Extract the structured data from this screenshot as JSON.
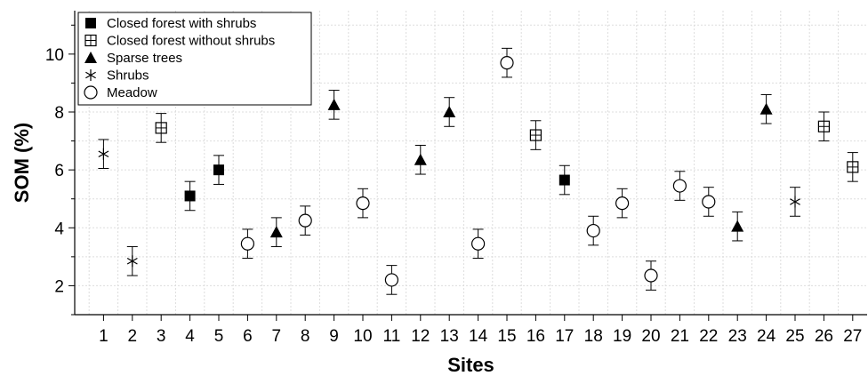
{
  "chart_data": {
    "type": "scatter",
    "title": "",
    "xlabel": "Sites",
    "ylabel": "SOM (%)",
    "xlim": [
      0,
      27.5
    ],
    "ylim": [
      1,
      11.5
    ],
    "x_ticks": [
      "1",
      "2",
      "3",
      "4",
      "5",
      "6",
      "7",
      "8",
      "9",
      "10",
      "11",
      "12",
      "13",
      "14",
      "15",
      "16",
      "17",
      "18",
      "19",
      "20",
      "21",
      "22",
      "23",
      "24",
      "25",
      "26",
      "27"
    ],
    "y_ticks": [
      "2",
      "4",
      "6",
      "8",
      "10"
    ],
    "grid": true,
    "legend_position": "top-left",
    "legend": [
      {
        "label": "Closed forest with shrubs",
        "marker": "filled-square"
      },
      {
        "label": "Closed forest without shrubs",
        "marker": "crossed-square"
      },
      {
        "label": "Sparse trees",
        "marker": "filled-triangle"
      },
      {
        "label": "Shrubs",
        "marker": "asterisk"
      },
      {
        "label": "Meadow",
        "marker": "open-circle"
      }
    ],
    "points": [
      {
        "x": 1,
        "y": 6.55,
        "err": 0.5,
        "marker": "asterisk"
      },
      {
        "x": 2,
        "y": 2.85,
        "err": 0.5,
        "marker": "asterisk"
      },
      {
        "x": 3,
        "y": 7.45,
        "err": 0.5,
        "marker": "crossed-square"
      },
      {
        "x": 4,
        "y": 5.1,
        "err": 0.5,
        "marker": "filled-square"
      },
      {
        "x": 5,
        "y": 6.0,
        "err": 0.5,
        "marker": "filled-square"
      },
      {
        "x": 6,
        "y": 3.45,
        "err": 0.5,
        "marker": "open-circle"
      },
      {
        "x": 7,
        "y": 3.85,
        "err": 0.5,
        "marker": "filled-triangle"
      },
      {
        "x": 8,
        "y": 4.25,
        "err": 0.5,
        "marker": "open-circle"
      },
      {
        "x": 9,
        "y": 8.25,
        "err": 0.5,
        "marker": "filled-triangle"
      },
      {
        "x": 10,
        "y": 4.85,
        "err": 0.5,
        "marker": "open-circle"
      },
      {
        "x": 11,
        "y": 2.2,
        "err": 0.5,
        "marker": "open-circle"
      },
      {
        "x": 12,
        "y": 6.35,
        "err": 0.5,
        "marker": "filled-triangle"
      },
      {
        "x": 13,
        "y": 8.0,
        "err": 0.5,
        "marker": "filled-triangle"
      },
      {
        "x": 14,
        "y": 3.45,
        "err": 0.5,
        "marker": "open-circle"
      },
      {
        "x": 15,
        "y": 9.7,
        "err": 0.5,
        "marker": "open-circle"
      },
      {
        "x": 16,
        "y": 7.2,
        "err": 0.5,
        "marker": "crossed-square"
      },
      {
        "x": 17,
        "y": 5.65,
        "err": 0.5,
        "marker": "filled-square"
      },
      {
        "x": 18,
        "y": 3.9,
        "err": 0.5,
        "marker": "open-circle"
      },
      {
        "x": 19,
        "y": 4.85,
        "err": 0.5,
        "marker": "open-circle"
      },
      {
        "x": 20,
        "y": 2.35,
        "err": 0.5,
        "marker": "open-circle"
      },
      {
        "x": 21,
        "y": 5.45,
        "err": 0.5,
        "marker": "open-circle"
      },
      {
        "x": 22,
        "y": 4.9,
        "err": 0.5,
        "marker": "open-circle"
      },
      {
        "x": 23,
        "y": 4.05,
        "err": 0.5,
        "marker": "filled-triangle"
      },
      {
        "x": 24,
        "y": 8.1,
        "err": 0.5,
        "marker": "filled-triangle"
      },
      {
        "x": 25,
        "y": 4.9,
        "err": 0.5,
        "marker": "asterisk"
      },
      {
        "x": 26,
        "y": 7.5,
        "err": 0.5,
        "marker": "crossed-square"
      },
      {
        "x": 27,
        "y": 6.1,
        "err": 0.5,
        "marker": "crossed-square"
      }
    ]
  }
}
